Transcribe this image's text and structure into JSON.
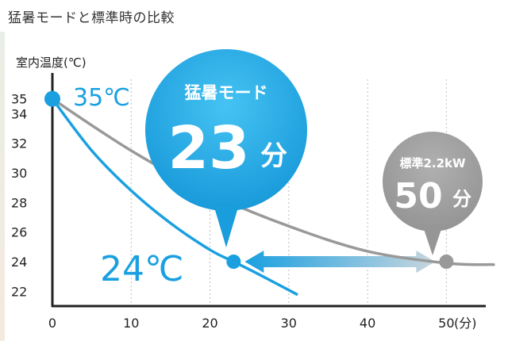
{
  "title": "猛暑モードと標準時の比較",
  "colors": {
    "mode_blue": "#1aa0e0",
    "standard_gray": "#999999",
    "axis": "#222222"
  },
  "chart_data": {
    "type": "line",
    "title": "猛暑モードと標準時の比較",
    "ylabel": "室内温度(℃)",
    "xlabel": "",
    "x_unit": "(分)",
    "xlim": [
      0,
      55
    ],
    "ylim": [
      21,
      36
    ],
    "x_ticks": [
      0,
      10,
      20,
      30,
      40,
      50
    ],
    "y_ticks": [
      22,
      24,
      26,
      28,
      30,
      32,
      34,
      35
    ],
    "grid": "vertical-dotted",
    "series": [
      {
        "name": "猛暑モード",
        "color": "#1aa0e0",
        "x": [
          0,
          5,
          10,
          15,
          20,
          23,
          26,
          31
        ],
        "y": [
          35,
          31.5,
          28.8,
          26.6,
          24.8,
          24,
          23.2,
          21.8
        ]
      },
      {
        "name": "標準2.2kW",
        "color": "#999999",
        "x": [
          0,
          10,
          20,
          30,
          40,
          50,
          56
        ],
        "y": [
          35,
          31.5,
          28.6,
          26.4,
          24.7,
          23.9,
          23.8
        ]
      }
    ],
    "markers": [
      {
        "label": "35℃",
        "x": 0,
        "y": 35
      },
      {
        "label": "24℃",
        "x": 23,
        "y": 24
      },
      {
        "label": "",
        "x": 50,
        "y": 24
      }
    ],
    "bubbles": [
      {
        "heading": "猛暑モード",
        "value": "23",
        "unit": "分"
      },
      {
        "heading": "標準2.2kW",
        "value": "50",
        "unit": "分"
      }
    ]
  }
}
